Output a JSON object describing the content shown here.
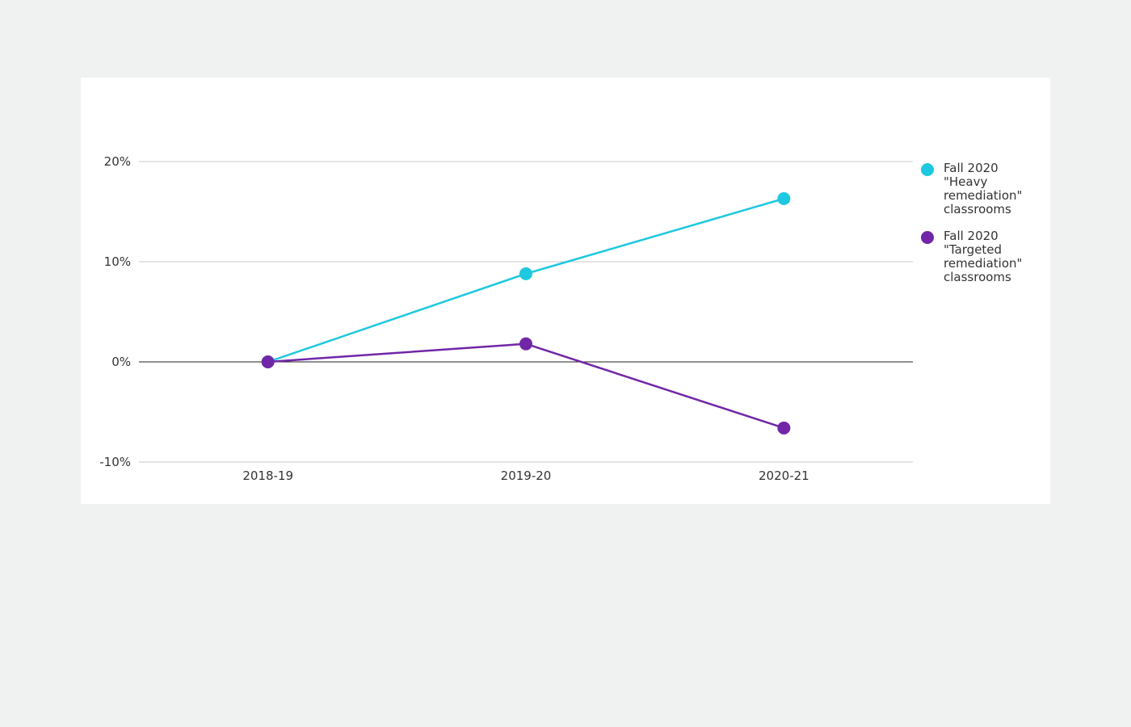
{
  "chart_data": {
    "type": "line",
    "categories": [
      "2018-19",
      "2019-20",
      "2020-21"
    ],
    "ylim": [
      -10,
      20
    ],
    "y_ticks": [
      20,
      10,
      0,
      -10
    ],
    "y_tick_labels": [
      "20%",
      "10%",
      "0%",
      "-10%"
    ],
    "y_unit": "%",
    "grid": true,
    "zero_line": true,
    "legend_position": "right",
    "series": [
      {
        "name": "Fall 2020 \"Heavy remediation\" classrooms",
        "legend_text": "Fall 2020\n\"Heavy\nremediation\"\nclassrooms",
        "color": "#1ec8e0",
        "values": [
          0,
          8.8,
          16.3
        ]
      },
      {
        "name": "Fall 2020 \"Targeted remediation\" classrooms",
        "legend_text": "Fall 2020\n\"Targeted\nremediation\"\nclassrooms",
        "color": "#7126a8",
        "values": [
          0,
          1.8,
          -6.6
        ]
      }
    ]
  },
  "colors": {
    "page_background": "#f0f1f1",
    "panel_background": "#ffffff",
    "gridline": "#c8c8c8",
    "zero_line": "#222222",
    "text": "#333333"
  }
}
